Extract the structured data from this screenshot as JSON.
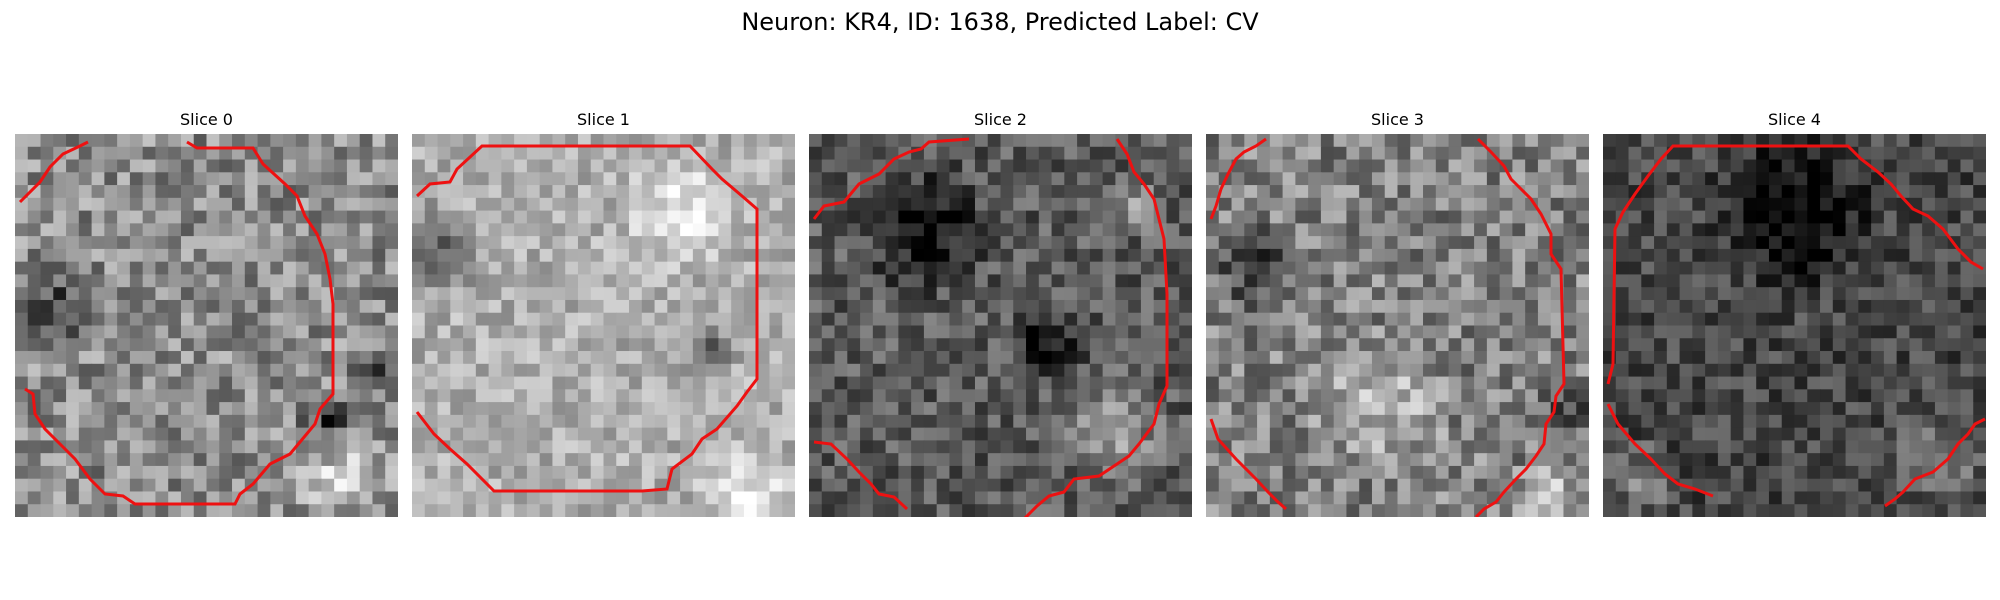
{
  "figure": {
    "title": "Neuron: KR4, ID: 1638, Predicted Label: CV"
  },
  "panels": [
    {
      "title": "Slice 0",
      "tone": 140,
      "contrast": 55,
      "dark": [
        [
          0.1,
          0.45,
          0.12
        ],
        [
          0.82,
          0.75,
          0.1
        ],
        [
          0.95,
          0.63,
          0.08
        ]
      ],
      "light": [
        [
          0.85,
          0.9,
          0.15
        ]
      ]
    },
    {
      "title": "Slice 1",
      "tone": 175,
      "contrast": 38,
      "dark": [
        [
          0.78,
          0.57,
          0.09
        ],
        [
          0.05,
          0.3,
          0.15
        ]
      ],
      "light": [
        [
          0.7,
          0.2,
          0.18
        ],
        [
          0.88,
          0.95,
          0.15
        ]
      ]
    },
    {
      "title": "Slice 2",
      "tone": 90,
      "contrast": 45,
      "dark": [
        [
          0.3,
          0.25,
          0.2
        ],
        [
          0.62,
          0.55,
          0.12
        ]
      ],
      "light": [
        [
          0.8,
          0.78,
          0.18
        ],
        [
          0.85,
          0.18,
          0.1
        ]
      ]
    },
    {
      "title": "Slice 3",
      "tone": 130,
      "contrast": 55,
      "dark": [
        [
          0.12,
          0.35,
          0.15
        ],
        [
          0.95,
          0.7,
          0.08
        ]
      ],
      "light": [
        [
          0.45,
          0.7,
          0.22
        ],
        [
          0.9,
          0.95,
          0.12
        ]
      ]
    },
    {
      "title": "Slice 4",
      "tone": 70,
      "contrast": 40,
      "dark": [
        [
          0.5,
          0.2,
          0.25
        ]
      ],
      "light": [
        [
          0.88,
          0.85,
          0.15
        ],
        [
          0.1,
          0.9,
          0.12
        ]
      ]
    }
  ]
}
